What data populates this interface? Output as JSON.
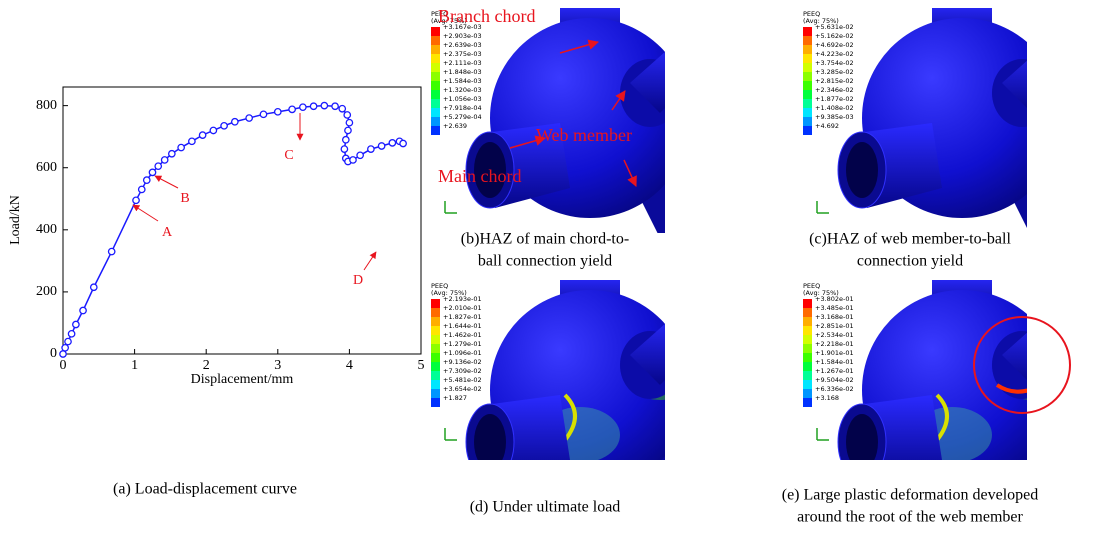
{
  "chart_data": {
    "type": "line",
    "x_label": "Displacement/mm",
    "y_label": "Load/kN",
    "x": [
      0,
      0.03,
      0.07,
      0.12,
      0.18,
      0.28,
      0.43,
      0.68,
      1.02,
      1.1,
      1.17,
      1.25,
      1.33,
      1.42,
      1.52,
      1.65,
      1.8,
      1.95,
      2.1,
      2.25,
      2.4,
      2.6,
      2.8,
      3.0,
      3.2,
      3.35,
      3.5,
      3.65,
      3.8,
      3.9,
      3.97,
      4.0,
      3.98,
      3.95,
      3.93,
      3.95,
      3.98,
      4.05,
      4.15,
      4.3,
      4.45,
      4.6,
      4.7,
      4.75
    ],
    "series": [
      {
        "color": "#1a1aff",
        "values": [
          0,
          20,
          40,
          65,
          95,
          140,
          215,
          330,
          495,
          530,
          560,
          585,
          605,
          625,
          645,
          665,
          685,
          705,
          720,
          735,
          748,
          760,
          772,
          780,
          788,
          795,
          798,
          800,
          798,
          790,
          770,
          745,
          720,
          690,
          660,
          630,
          620,
          625,
          640,
          660,
          670,
          680,
          685,
          678
        ]
      }
    ],
    "xlim": [
      0,
      5
    ],
    "ylim": [
      0,
      860
    ],
    "xticks": [
      0,
      1,
      2,
      3,
      4,
      5
    ],
    "yticks": [
      0,
      200,
      400,
      600,
      800
    ],
    "annotations": [
      "A",
      "B",
      "C",
      "D"
    ],
    "caption": "(a) Load-displacement curve"
  },
  "panels": [
    {
      "caption": [
        "(b)HAZ of main chord-to-",
        "ball connection yield"
      ],
      "legend_title": "PEEQ",
      "legend_subtitle": "(Avg: 75%)",
      "legend_values": [
        "+3.167e-03",
        "+2.903e-03",
        "+2.639e-03",
        "+2.375e-03",
        "+2.111e-03",
        "+1.848e-03",
        "+1.584e-03",
        "+1.320e-03",
        "+1.056e-03",
        "+7.918e-04",
        "+5.279e-04",
        "+2.639"
      ],
      "labels": [
        "Branch chord",
        "Web member",
        "Main chord"
      ]
    },
    {
      "caption": [
        "(c)HAZ of web member-to-ball",
        "connection yield"
      ],
      "legend_title": "PEEQ",
      "legend_subtitle": "(Avg: 75%)",
      "legend_values": [
        "+5.631e-02",
        "+5.162e-02",
        "+4.692e-02",
        "+4.223e-02",
        "+3.754e-02",
        "+3.285e-02",
        "+2.815e-02",
        "+2.346e-02",
        "+1.877e-02",
        "+1.408e-02",
        "+9.385e-03",
        "+4.692"
      ]
    },
    {
      "caption": [
        "(d) Under ultimate load"
      ],
      "legend_title": "PEEQ",
      "legend_subtitle": "(Avg: 75%)",
      "legend_values": [
        "+2.193e-01",
        "+2.010e-01",
        "+1.827e-01",
        "+1.644e-01",
        "+1.462e-01",
        "+1.279e-01",
        "+1.096e-01",
        "+9.136e-02",
        "+7.309e-02",
        "+5.481e-02",
        "+3.654e-02",
        "+1.827"
      ]
    },
    {
      "caption": [
        "(e) Large plastic deformation developed",
        "around the root of the web member"
      ],
      "legend_title": "PEEQ",
      "legend_subtitle": "(Avg: 75%)",
      "legend_values": [
        "+3.802e-01",
        "+3.485e-01",
        "+3.168e-01",
        "+2.851e-01",
        "+2.534e-01",
        "+2.218e-01",
        "+1.901e-01",
        "+1.584e-01",
        "+1.267e-01",
        "+9.504e-02",
        "+6.336e-02",
        "+3.168"
      ]
    }
  ]
}
